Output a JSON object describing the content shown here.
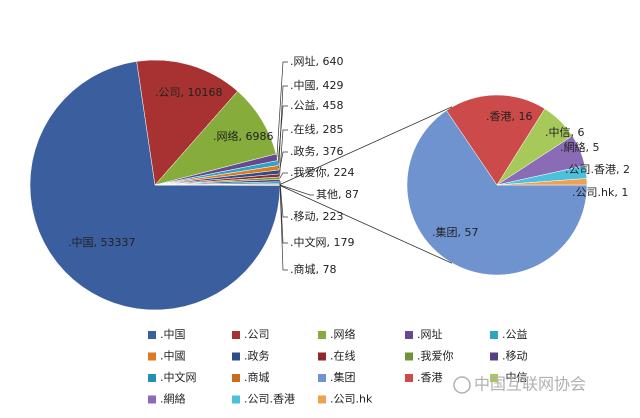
{
  "chart_data": {
    "type": "pie-of-pie",
    "categories": [
      ".中国",
      ".公司",
      ".网络",
      ".网址",
      ".公益",
      ".中國",
      ".政务",
      ".在线",
      ".我爱你",
      ".移动",
      ".中文网",
      ".商城"
    ],
    "values": [
      53337,
      10168,
      6986,
      640,
      458,
      429,
      376,
      285,
      224,
      223,
      179,
      78
    ],
    "value_labels": [
      ".中国, 53337",
      ".公司, 10168",
      ".网络, 6986",
      ".网址, 640",
      ".公益, 458",
      ".中國, 429",
      ".政务, 376",
      ".在线, 285",
      ".我爱你, 224",
      ".移动, 223",
      ".中文网, 179",
      ".商城, 78"
    ],
    "colors": [
      "#3a5e9e",
      "#a83232",
      "#86ad3c",
      "#66498f",
      "#2ea4c4",
      "#de7a22",
      "#2c4c8a",
      "#8f2a2a",
      "#6f9436",
      "#573f80",
      "#2490ae",
      "#c86c1c"
    ],
    "other_value": 87,
    "other_label": "其他, 87",
    "other_color": "#8eaadb",
    "secondary": {
      "categories": [
        ".集团",
        ".香港",
        ".中信",
        ".網絡",
        ".公司.香港",
        ".公司.hk"
      ],
      "values": [
        57,
        16,
        6,
        5,
        2,
        1
      ],
      "value_labels": [
        ".集团, 57",
        ".香港, 16",
        ".中信, 6",
        ".網絡, 5",
        ".公司.香港, 2",
        ".公司.hk, 1"
      ],
      "colors": [
        "#6f93cf",
        "#cc4a4a",
        "#a6c95a",
        "#8a6bb5",
        "#4cc0dd",
        "#f0a050"
      ]
    },
    "watermark": "中国互联网协会"
  }
}
